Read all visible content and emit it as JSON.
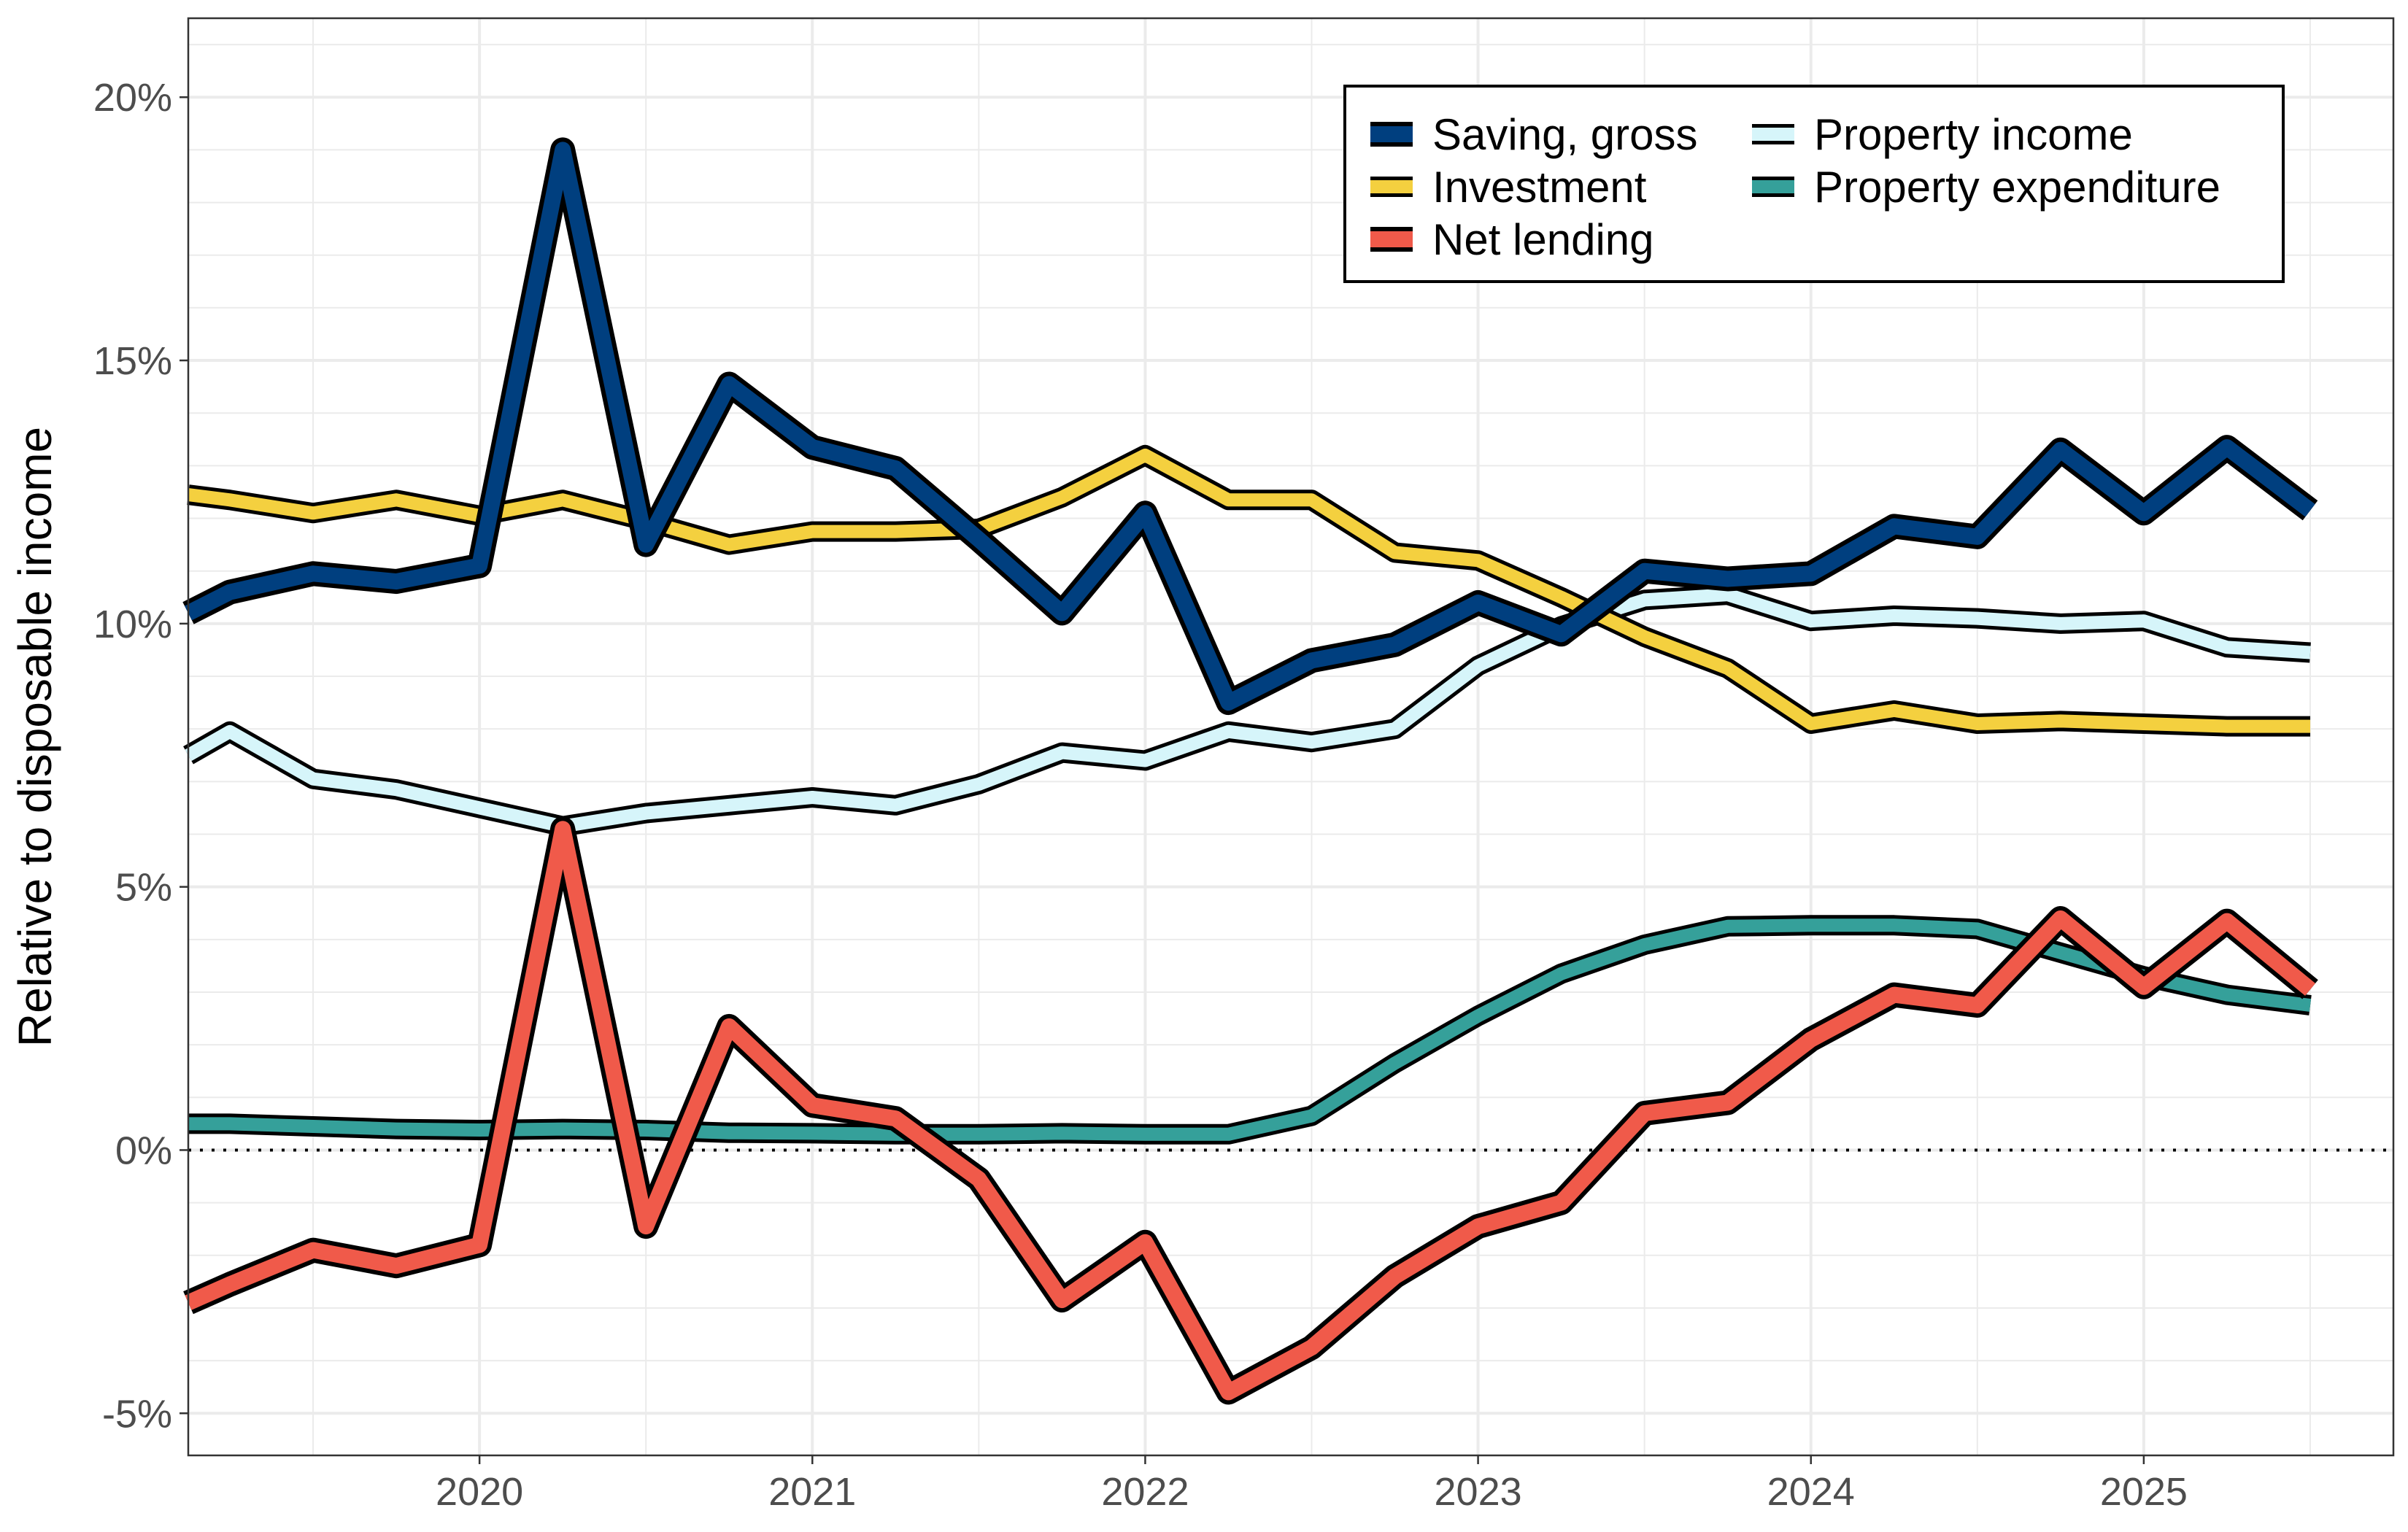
{
  "chart_data": {
    "type": "line",
    "title": "",
    "xlabel": "",
    "ylabel": "Relative to disposable income",
    "ylim": [
      -5.8,
      21.5
    ],
    "xlim": [
      2019.125,
      2025.75
    ],
    "x_ticks": [
      {
        "value": 2020,
        "label": "2020"
      },
      {
        "value": 2021,
        "label": "2021"
      },
      {
        "value": 2022,
        "label": "2022"
      },
      {
        "value": 2023,
        "label": "2023"
      },
      {
        "value": 2024,
        "label": "2024"
      },
      {
        "value": 2025,
        "label": "2025"
      }
    ],
    "y_ticks": [
      {
        "value": -5,
        "label": "-5%"
      },
      {
        "value": 0,
        "label": "0%"
      },
      {
        "value": 5,
        "label": "5%"
      },
      {
        "value": 10,
        "label": "10%"
      },
      {
        "value": 15,
        "label": "15%"
      },
      {
        "value": 20,
        "label": "20%"
      }
    ],
    "grid": true,
    "reference_line": {
      "y": 0,
      "style": "dotted"
    },
    "legend_position": "top-right",
    "x": [
      2019.125,
      2019.25,
      2019.5,
      2019.75,
      2020.0,
      2020.25,
      2020.5,
      2020.75,
      2021.0,
      2021.25,
      2021.5,
      2021.75,
      2022.0,
      2022.25,
      2022.5,
      2022.75,
      2023.0,
      2023.25,
      2023.5,
      2023.75,
      2024.0,
      2024.25,
      2024.5,
      2024.75,
      2025.0,
      2025.25,
      2025.5
    ],
    "series": [
      {
        "name": "Saving, gross",
        "color": "#003f7f",
        "width": "thick",
        "values": [
          10.2,
          10.6,
          10.95,
          10.8,
          11.1,
          19.0,
          11.5,
          14.55,
          13.35,
          12.95,
          11.6,
          10.2,
          12.1,
          8.5,
          9.3,
          9.6,
          10.4,
          9.8,
          11.0,
          10.85,
          10.95,
          11.85,
          11.65,
          13.3,
          12.1,
          13.35,
          12.15
        ]
      },
      {
        "name": "Investment",
        "color": "#f4d03f",
        "width": "medium",
        "values": [
          12.45,
          12.35,
          12.1,
          12.35,
          12.05,
          12.35,
          11.95,
          11.5,
          11.75,
          11.75,
          11.8,
          12.4,
          13.2,
          12.35,
          12.35,
          11.35,
          11.2,
          10.5,
          9.75,
          9.15,
          8.1,
          8.35,
          8.1,
          8.15,
          8.1,
          8.05,
          8.05
        ]
      },
      {
        "name": "Net lending",
        "color": "#f05a4a",
        "width": "thick",
        "values": [
          -2.9,
          -2.55,
          -1.9,
          -2.2,
          -1.8,
          6.1,
          -1.45,
          2.35,
          0.85,
          0.6,
          -0.55,
          -2.85,
          -1.75,
          -4.6,
          -3.75,
          -2.4,
          -1.45,
          -1.0,
          0.7,
          0.9,
          2.1,
          2.95,
          2.75,
          4.4,
          3.1,
          4.35,
          3.05
        ]
      },
      {
        "name": "Property income",
        "color": "#d6f5fa",
        "width": "medium",
        "values": [
          7.5,
          7.95,
          7.05,
          6.85,
          6.5,
          6.15,
          6.4,
          6.55,
          6.7,
          6.55,
          6.95,
          7.55,
          7.4,
          7.95,
          7.75,
          8.0,
          9.2,
          9.95,
          10.45,
          10.55,
          10.05,
          10.15,
          10.1,
          10.0,
          10.05,
          9.55,
          9.45
        ]
      },
      {
        "name": "Property expenditure",
        "color": "#35a09a",
        "width": "medium",
        "values": [
          0.5,
          0.5,
          0.45,
          0.4,
          0.38,
          0.4,
          0.38,
          0.33,
          0.32,
          0.3,
          0.3,
          0.32,
          0.3,
          0.3,
          0.65,
          1.65,
          2.55,
          3.35,
          3.9,
          4.25,
          4.27,
          4.27,
          4.2,
          3.75,
          3.3,
          2.95,
          2.75
        ]
      }
    ]
  }
}
